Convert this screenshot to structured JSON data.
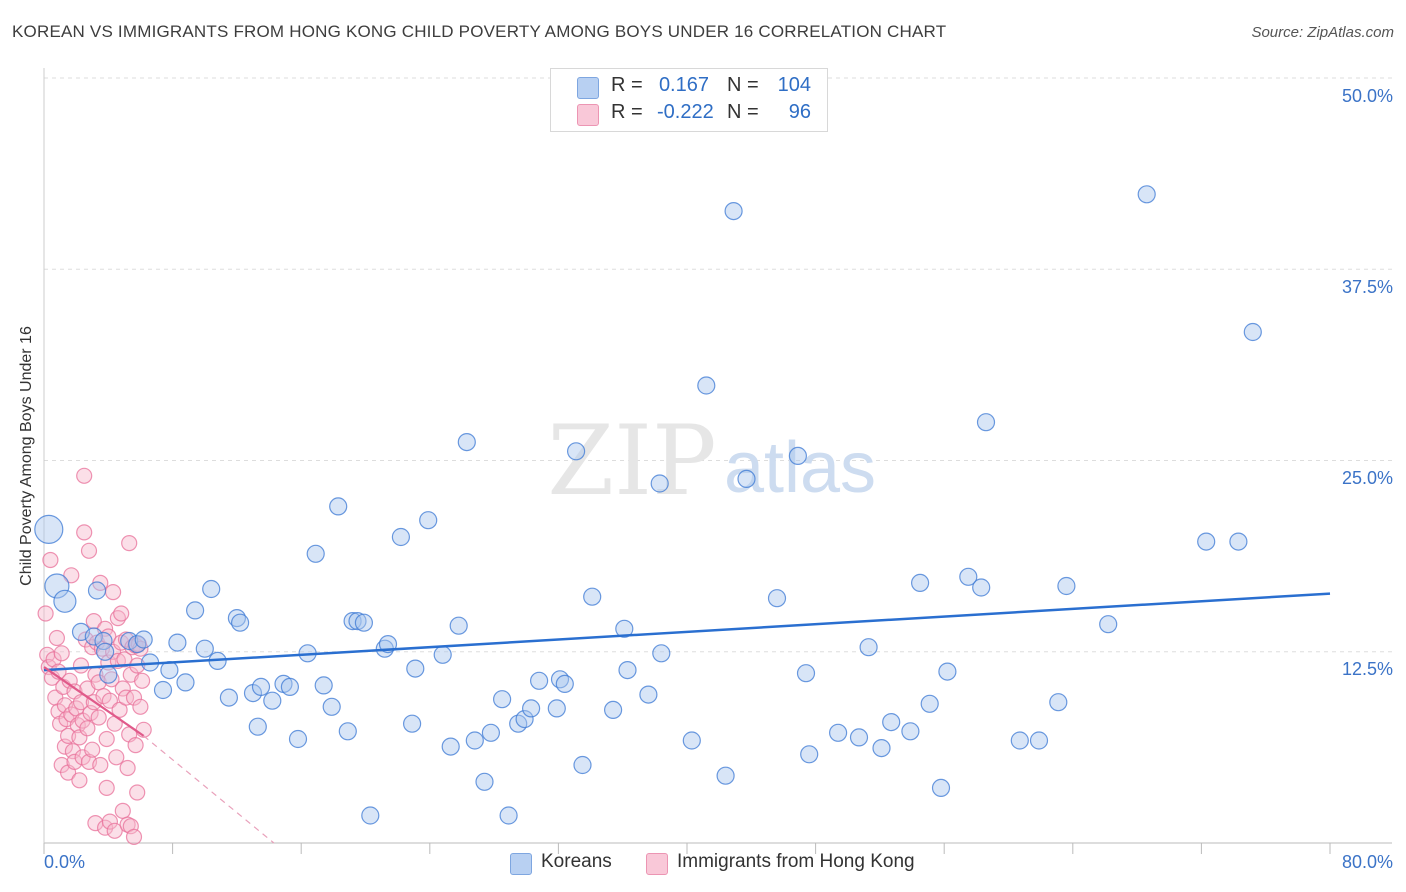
{
  "title": "KOREAN VS IMMIGRANTS FROM HONG KONG CHILD POVERTY AMONG BOYS UNDER 16 CORRELATION CHART",
  "source": "Source: ZipAtlas.com",
  "watermark": {
    "zip": "ZIP",
    "atlas": "atlas"
  },
  "colors": {
    "blue": "#3b78d4",
    "blue_fill": "#a9c6ee",
    "pink": "#e8709a",
    "pink_fill": "#f6b8cd",
    "tick_text": "#3b73c7",
    "grid": "#dddddd"
  },
  "legend": {
    "r_label": "R =",
    "n_label": "N =",
    "rows": [
      {
        "r": "0.167",
        "n": "104"
      },
      {
        "r": "-0.222",
        "n": "96"
      }
    ]
  },
  "bottom_legend": [
    "Koreans",
    "Immigrants from Hong Kong"
  ],
  "chart_data": {
    "type": "scatter",
    "title": "KOREAN VS IMMIGRANTS FROM HONG KONG CHILD POVERTY AMONG BOYS UNDER 16 CORRELATION CHART",
    "xlabel": "",
    "ylabel": "Child Poverty Among Boys Under 16",
    "xlim": [
      0,
      80
    ],
    "ylim": [
      0,
      50
    ],
    "x_tick_labels": [
      "0.0%",
      "80.0%"
    ],
    "y_ticks": [
      12.5,
      25.0,
      37.5,
      50.0
    ],
    "y_tick_labels": [
      "12.5%",
      "25.0%",
      "37.5%",
      "50.0%"
    ],
    "grid": true,
    "series": [
      {
        "name": "Koreans",
        "r": 0.167,
        "n": 104,
        "trend": {
          "x0": 0,
          "y0": 11.3,
          "x1": 80,
          "y1": 16.3
        },
        "points": [
          [
            0.3,
            20.5
          ],
          [
            0.8,
            16.8
          ],
          [
            1.3,
            15.8
          ],
          [
            2.3,
            13.8
          ],
          [
            3.1,
            13.5
          ],
          [
            3.3,
            16.5
          ],
          [
            3.7,
            13.2
          ],
          [
            3.8,
            12.5
          ],
          [
            4.0,
            11.0
          ],
          [
            5.3,
            13.2
          ],
          [
            5.8,
            13.0
          ],
          [
            6.2,
            13.3
          ],
          [
            6.6,
            11.8
          ],
          [
            7.4,
            10.0
          ],
          [
            7.8,
            11.3
          ],
          [
            8.3,
            13.1
          ],
          [
            8.8,
            10.5
          ],
          [
            9.4,
            15.2
          ],
          [
            10.0,
            12.7
          ],
          [
            10.4,
            16.6
          ],
          [
            10.8,
            11.9
          ],
          [
            11.5,
            9.5
          ],
          [
            12.0,
            14.7
          ],
          [
            12.2,
            14.4
          ],
          [
            13.0,
            9.8
          ],
          [
            13.3,
            7.6
          ],
          [
            13.5,
            10.2
          ],
          [
            14.2,
            9.3
          ],
          [
            14.9,
            10.4
          ],
          [
            15.3,
            10.2
          ],
          [
            15.8,
            6.8
          ],
          [
            16.4,
            12.4
          ],
          [
            16.9,
            18.9
          ],
          [
            17.4,
            10.3
          ],
          [
            17.9,
            8.9
          ],
          [
            18.3,
            22.0
          ],
          [
            18.9,
            7.3
          ],
          [
            19.2,
            14.5
          ],
          [
            19.5,
            14.5
          ],
          [
            19.9,
            14.4
          ],
          [
            20.3,
            1.8
          ],
          [
            21.2,
            12.7
          ],
          [
            21.4,
            13.0
          ],
          [
            22.2,
            20.0
          ],
          [
            22.9,
            7.8
          ],
          [
            23.1,
            11.4
          ],
          [
            23.9,
            21.1
          ],
          [
            24.8,
            12.3
          ],
          [
            25.3,
            6.3
          ],
          [
            25.8,
            14.2
          ],
          [
            26.3,
            26.2
          ],
          [
            26.8,
            6.7
          ],
          [
            27.4,
            4.0
          ],
          [
            27.8,
            7.2
          ],
          [
            28.5,
            9.4
          ],
          [
            28.9,
            1.8
          ],
          [
            29.5,
            7.8
          ],
          [
            29.9,
            8.1
          ],
          [
            30.3,
            8.8
          ],
          [
            30.8,
            10.6
          ],
          [
            31.9,
            8.8
          ],
          [
            32.1,
            10.7
          ],
          [
            32.4,
            10.4
          ],
          [
            33.1,
            25.6
          ],
          [
            33.5,
            5.1
          ],
          [
            34.1,
            16.1
          ],
          [
            35.4,
            8.7
          ],
          [
            36.1,
            14.0
          ],
          [
            36.3,
            11.3
          ],
          [
            37.6,
            9.7
          ],
          [
            38.3,
            23.5
          ],
          [
            38.4,
            12.4
          ],
          [
            40.3,
            6.7
          ],
          [
            41.2,
            29.9
          ],
          [
            42.4,
            4.4
          ],
          [
            42.9,
            41.3
          ],
          [
            43.7,
            23.8
          ],
          [
            45.6,
            16.0
          ],
          [
            46.9,
            25.3
          ],
          [
            47.4,
            11.1
          ],
          [
            47.6,
            5.8
          ],
          [
            49.4,
            7.2
          ],
          [
            50.7,
            6.9
          ],
          [
            51.3,
            12.8
          ],
          [
            52.1,
            6.2
          ],
          [
            52.7,
            7.9
          ],
          [
            53.9,
            7.3
          ],
          [
            54.5,
            17.0
          ],
          [
            55.1,
            9.1
          ],
          [
            55.8,
            3.6
          ],
          [
            56.2,
            11.2
          ],
          [
            57.5,
            17.4
          ],
          [
            58.3,
            16.7
          ],
          [
            58.6,
            27.5
          ],
          [
            60.7,
            6.7
          ],
          [
            61.9,
            6.7
          ],
          [
            63.1,
            9.2
          ],
          [
            63.6,
            16.8
          ],
          [
            66.2,
            14.3
          ],
          [
            68.6,
            42.4
          ],
          [
            72.3,
            19.7
          ],
          [
            74.3,
            19.7
          ],
          [
            75.2,
            33.4
          ]
        ]
      },
      {
        "name": "Immigrants from Hong Kong",
        "r": -0.222,
        "n": 96,
        "trend": {
          "x0": 0,
          "y0": 11.5,
          "x1": 6.2,
          "y1": 7.0,
          "dash_x1": 14.3,
          "dash_y1": 0
        },
        "points": [
          [
            0.1,
            15.0
          ],
          [
            0.2,
            12.3
          ],
          [
            0.3,
            11.5
          ],
          [
            0.4,
            18.5
          ],
          [
            0.5,
            10.8
          ],
          [
            0.6,
            12.0
          ],
          [
            0.7,
            9.5
          ],
          [
            0.8,
            13.4
          ],
          [
            0.9,
            8.6
          ],
          [
            0.9,
            11.2
          ],
          [
            1.0,
            7.8
          ],
          [
            1.1,
            12.4
          ],
          [
            1.1,
            5.1
          ],
          [
            1.2,
            10.2
          ],
          [
            1.3,
            6.3
          ],
          [
            1.3,
            9.0
          ],
          [
            1.4,
            8.1
          ],
          [
            1.5,
            7.0
          ],
          [
            1.5,
            4.6
          ],
          [
            1.6,
            10.6
          ],
          [
            1.7,
            8.4
          ],
          [
            1.7,
            17.5
          ],
          [
            1.8,
            6.0
          ],
          [
            1.9,
            9.9
          ],
          [
            1.9,
            5.3
          ],
          [
            2.0,
            8.8
          ],
          [
            2.1,
            7.7
          ],
          [
            2.2,
            6.9
          ],
          [
            2.2,
            4.1
          ],
          [
            2.3,
            11.6
          ],
          [
            2.3,
            9.2
          ],
          [
            2.4,
            8.0
          ],
          [
            2.4,
            5.6
          ],
          [
            2.5,
            20.3
          ],
          [
            2.5,
            24.0
          ],
          [
            2.6,
            13.3
          ],
          [
            2.7,
            10.1
          ],
          [
            2.7,
            7.5
          ],
          [
            2.8,
            19.1
          ],
          [
            2.8,
            5.3
          ],
          [
            2.9,
            8.5
          ],
          [
            3.0,
            12.8
          ],
          [
            3.0,
            6.1
          ],
          [
            3.1,
            9.2
          ],
          [
            3.1,
            14.5
          ],
          [
            3.2,
            11.0
          ],
          [
            3.2,
            1.3
          ],
          [
            3.3,
            13.1
          ],
          [
            3.4,
            10.5
          ],
          [
            3.4,
            8.2
          ],
          [
            3.5,
            5.1
          ],
          [
            3.5,
            17.0
          ],
          [
            3.6,
            12.7
          ],
          [
            3.7,
            9.6
          ],
          [
            3.8,
            14.0
          ],
          [
            3.8,
            1.0
          ],
          [
            3.9,
            6.8
          ],
          [
            3.9,
            3.6
          ],
          [
            4.0,
            11.8
          ],
          [
            4.0,
            13.5
          ],
          [
            4.1,
            9.3
          ],
          [
            4.1,
            1.4
          ],
          [
            4.2,
            10.7
          ],
          [
            4.3,
            12.5
          ],
          [
            4.3,
            16.4
          ],
          [
            4.4,
            7.8
          ],
          [
            4.4,
            0.8
          ],
          [
            4.5,
            5.6
          ],
          [
            4.6,
            11.9
          ],
          [
            4.6,
            14.7
          ],
          [
            4.7,
            8.7
          ],
          [
            4.8,
            15.0
          ],
          [
            4.8,
            13.1
          ],
          [
            4.9,
            10.1
          ],
          [
            4.9,
            2.1
          ],
          [
            5.0,
            12.0
          ],
          [
            5.1,
            9.5
          ],
          [
            5.1,
            13.3
          ],
          [
            5.2,
            4.9
          ],
          [
            5.2,
            1.2
          ],
          [
            5.3,
            7.1
          ],
          [
            5.3,
            19.6
          ],
          [
            5.4,
            11.0
          ],
          [
            5.4,
            1.1
          ],
          [
            5.5,
            12.8
          ],
          [
            5.6,
            0.4
          ],
          [
            5.6,
            9.5
          ],
          [
            5.7,
            12.9
          ],
          [
            5.7,
            6.4
          ],
          [
            5.8,
            3.3
          ],
          [
            5.8,
            11.6
          ],
          [
            5.9,
            13.0
          ],
          [
            6.0,
            12.7
          ],
          [
            6.0,
            8.9
          ],
          [
            6.1,
            10.6
          ],
          [
            6.2,
            7.4
          ]
        ]
      }
    ]
  }
}
